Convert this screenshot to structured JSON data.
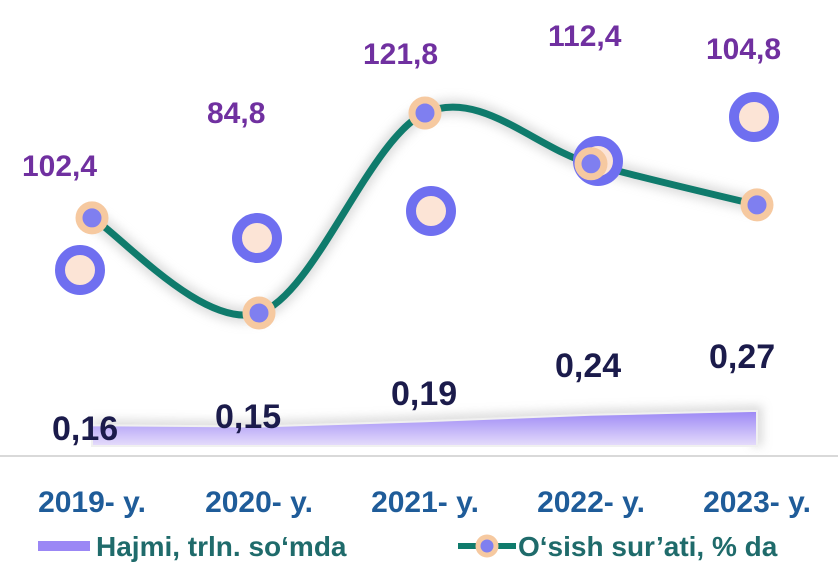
{
  "chart_data": {
    "type": "line",
    "categories": [
      "2019- y.",
      "2020- y.",
      "2021- y.",
      "2022- y.",
      "2023- y."
    ],
    "series": [
      {
        "name": "Hajmi, trln. so‘mda",
        "kind": "area",
        "values": [
          0.16,
          0.15,
          0.19,
          0.24,
          0.27
        ],
        "labels": [
          "0,16",
          "0,15",
          "0,19",
          "0,24",
          "0,27"
        ],
        "color": "#9B87F5"
      },
      {
        "name": "O‘sish sur’ati, % da",
        "kind": "line",
        "values": [
          102.4,
          84.8,
          121.8,
          112.4,
          104.8
        ],
        "labels": [
          "102,4",
          "84,8",
          "121,8",
          "112,4",
          "104,8"
        ],
        "color": "#0F7B6C",
        "marker_color": "#7F7FF0",
        "marker_ring": "#F6C9A0"
      }
    ],
    "legend_position": "bottom",
    "grid": false
  }
}
